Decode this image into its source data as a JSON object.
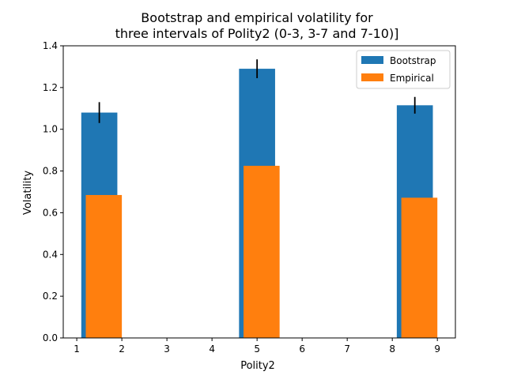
{
  "chart_data": {
    "type": "bar",
    "title_lines": [
      "Bootstrap and empirical volatility for",
      "three intervals of Polity2 (0-3, 3-7 and 7-10)]"
    ],
    "xlabel": "Polity2",
    "ylabel": "Volatility",
    "xlim": [
      0.7,
      9.4
    ],
    "ylim": [
      0,
      1.4
    ],
    "xticks": [
      "1",
      "2",
      "3",
      "4",
      "5",
      "6",
      "7",
      "8",
      "9"
    ],
    "yticks": [
      "0.0",
      "0.2",
      "0.4",
      "0.6",
      "0.8",
      "1.0",
      "1.2",
      "1.4"
    ],
    "grid": false,
    "legend_position": "top-right",
    "series": [
      {
        "name": "Bootstrap",
        "color": "#1f77b4",
        "x": [
          1.5,
          5.0,
          8.5
        ],
        "width": 0.8,
        "values": [
          1.08,
          1.29,
          1.115
        ],
        "error": [
          0.05,
          0.045,
          0.04
        ]
      },
      {
        "name": "Empirical",
        "color": "#ff7f0e",
        "x": [
          1.6,
          5.1,
          8.6
        ],
        "width": 0.8,
        "values": [
          0.685,
          0.825,
          0.672
        ]
      }
    ]
  }
}
